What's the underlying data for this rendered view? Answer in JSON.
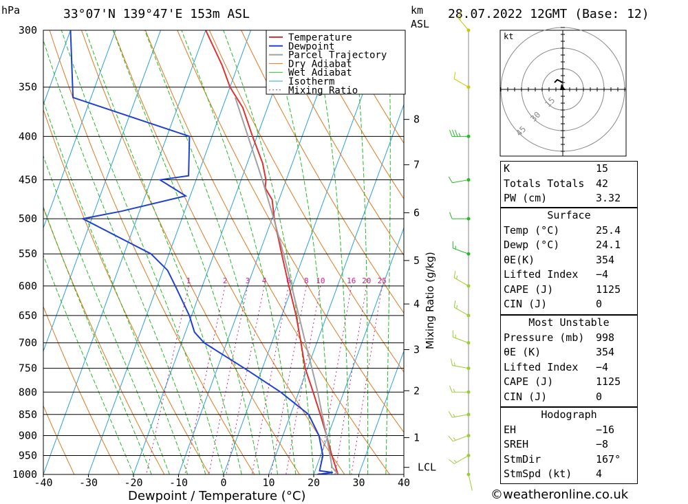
{
  "header": {
    "hpa_unit": "hPa",
    "location": "33°07'N 139°47'E 153m ASL",
    "km_unit": "km",
    "asl_unit": "ASL",
    "datetime": "28.07.2022 12GMT (Base: 12)"
  },
  "chart_data": {
    "type": "skew-t",
    "xlabel": "Dewpoint / Temperature (°C)",
    "ylabel_left": "hPa",
    "ylabel_right": "Mixing Ratio (g/kg)",
    "x_ticks": [
      -40,
      -30,
      -20,
      -10,
      0,
      10,
      20,
      30,
      40
    ],
    "pressure_levels": [
      300,
      350,
      400,
      450,
      500,
      550,
      600,
      650,
      700,
      750,
      800,
      850,
      900,
      950,
      1000
    ],
    "height_ticks_km": [
      {
        "label": "8",
        "p": 382
      },
      {
        "label": "7",
        "p": 432
      },
      {
        "label": "6",
        "p": 492
      },
      {
        "label": "5",
        "p": 560
      },
      {
        "label": "4",
        "p": 630
      },
      {
        "label": "3",
        "p": 713
      },
      {
        "label": "2",
        "p": 797
      },
      {
        "label": "1",
        "p": 905
      },
      {
        "label": "LCL",
        "p": 981
      }
    ],
    "mixing_ratio_labels": [
      "1",
      "2",
      "3",
      "4",
      "6",
      "8",
      "10",
      "16",
      "20",
      "25"
    ],
    "mixing_ratio_values": [
      1,
      2,
      3,
      4,
      6,
      8,
      10,
      16,
      20,
      25
    ],
    "series": [
      {
        "name": "Temperature",
        "color": "#e03030",
        "points": [
          [
            1000,
            25.4
          ],
          [
            950,
            22.5
          ],
          [
            900,
            19.7
          ],
          [
            850,
            16.6
          ],
          [
            800,
            13.2
          ],
          [
            750,
            9.5
          ],
          [
            700,
            6.5
          ],
          [
            650,
            3.2
          ],
          [
            600,
            -0.8
          ],
          [
            550,
            -5.0
          ],
          [
            500,
            -9.5
          ],
          [
            475,
            -11.5
          ],
          [
            460,
            -14.0
          ],
          [
            450,
            -14.5
          ],
          [
            430,
            -16.6
          ],
          [
            400,
            -21.0
          ],
          [
            370,
            -25.5
          ],
          [
            350,
            -30.0
          ],
          [
            330,
            -33.5
          ],
          [
            300,
            -40.0
          ]
        ]
      },
      {
        "name": "Dewpoint",
        "color": "#2040d0",
        "points": [
          [
            1000,
            20.8
          ],
          [
            995,
            24.1
          ],
          [
            990,
            21.0
          ],
          [
            950,
            20.5
          ],
          [
            900,
            18.0
          ],
          [
            850,
            14.0
          ],
          [
            800,
            6.0
          ],
          [
            750,
            -4.0
          ],
          [
            700,
            -15.0
          ],
          [
            680,
            -18.0
          ],
          [
            650,
            -20.5
          ],
          [
            600,
            -26.0
          ],
          [
            575,
            -29.0
          ],
          [
            550,
            -34.0
          ],
          [
            500,
            -52.0
          ],
          [
            490,
            -44.0
          ],
          [
            470,
            -31.0
          ],
          [
            450,
            -38.0
          ],
          [
            445,
            -32.0
          ],
          [
            400,
            -35.0
          ],
          [
            360,
            -64.0
          ],
          [
            300,
            -70.0
          ]
        ]
      },
      {
        "name": "Parcel Trajectory",
        "color": "#a0a0a0",
        "points": [
          [
            1000,
            25.4
          ],
          [
            981,
            23.5
          ],
          [
            900,
            19.7
          ],
          [
            850,
            17.0
          ],
          [
            800,
            14.2
          ],
          [
            750,
            11.0
          ],
          [
            700,
            7.5
          ],
          [
            650,
            3.8
          ],
          [
            600,
            -0.2
          ],
          [
            550,
            -4.6
          ],
          [
            500,
            -9.6
          ],
          [
            450,
            -15.3
          ],
          [
            400,
            -22.0
          ],
          [
            360,
            -28.0
          ]
        ]
      }
    ],
    "legend": [
      "Temperature",
      "Dewpoint",
      "Parcel Trajectory",
      "Dry Adiabat",
      "Wet Adiabat",
      "Isotherm",
      "Mixing Ratio"
    ],
    "legend_colors": [
      "#e03030",
      "#2040d0",
      "#a0a0a0",
      "#e07820",
      "#22bb22",
      "#2aa0e0",
      "#d0208a"
    ],
    "wind_barbs": [
      {
        "p": 1000,
        "dir": 167,
        "spd": 4
      },
      {
        "p": 950,
        "dir": 240,
        "spd": 5
      },
      {
        "p": 900,
        "dir": 250,
        "spd": 5
      },
      {
        "p": 850,
        "dir": 260,
        "spd": 5
      },
      {
        "p": 800,
        "dir": 270,
        "spd": 5
      },
      {
        "p": 750,
        "dir": 280,
        "spd": 5
      },
      {
        "p": 700,
        "dir": 290,
        "spd": 5
      },
      {
        "p": 650,
        "dir": 300,
        "spd": 5
      },
      {
        "p": 600,
        "dir": 300,
        "spd": 5
      },
      {
        "p": 550,
        "dir": 290,
        "spd": 5
      },
      {
        "p": 500,
        "dir": 270,
        "spd": 10
      },
      {
        "p": 450,
        "dir": 260,
        "spd": 10
      },
      {
        "p": 400,
        "dir": 270,
        "spd": 25
      },
      {
        "p": 350,
        "dir": 300,
        "spd": 10
      },
      {
        "p": 300,
        "dir": 320,
        "spd": 5
      }
    ],
    "hodograph": {
      "unit": "kt",
      "ring_labels": [
        "15",
        "30",
        "45"
      ]
    }
  },
  "indices": [
    {
      "label": "K",
      "value": "15"
    },
    {
      "label": "Totals Totals",
      "value": "42"
    },
    {
      "label": "PW (cm)",
      "value": "3.32"
    }
  ],
  "surface": {
    "title": "Surface",
    "rows": [
      {
        "label": "Temp (°C)",
        "value": "25.4"
      },
      {
        "label": "Dewp (°C)",
        "value": "24.1"
      },
      {
        "label": "θE(K)",
        "value": "354"
      },
      {
        "label": "Lifted Index",
        "value": "−4"
      },
      {
        "label": "CAPE (J)",
        "value": "1125"
      },
      {
        "label": "CIN (J)",
        "value": "0"
      }
    ]
  },
  "most_unstable": {
    "title": "Most Unstable",
    "rows": [
      {
        "label": "Pressure (mb)",
        "value": "998"
      },
      {
        "label": "θE (K)",
        "value": "354"
      },
      {
        "label": "Lifted Index",
        "value": "−4"
      },
      {
        "label": "CAPE (J)",
        "value": "1125"
      },
      {
        "label": "CIN (J)",
        "value": "0"
      }
    ]
  },
  "hodograph_box": {
    "title": "Hodograph",
    "rows": [
      {
        "label": "EH",
        "value": "−16"
      },
      {
        "label": "SREH",
        "value": "−8"
      },
      {
        "label": "StmDir",
        "value": "167°"
      },
      {
        "label": "StmSpd (kt)",
        "value": "4"
      }
    ]
  },
  "footer": {
    "copyright": "©weatheronline.co.uk"
  }
}
